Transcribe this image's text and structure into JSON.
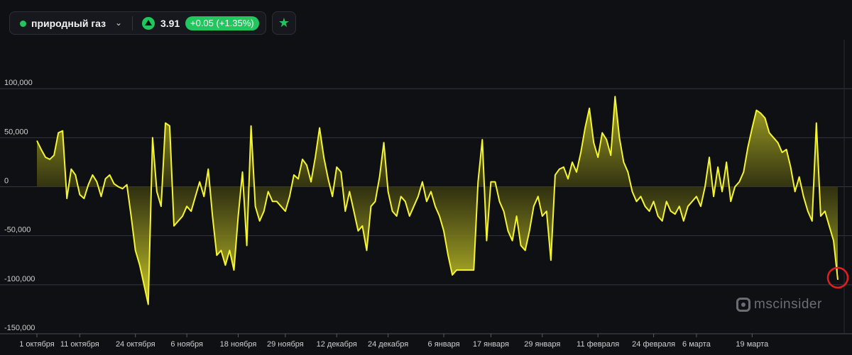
{
  "header": {
    "asset_name": "природный газ",
    "price": "3.91",
    "change": "+0.05 (+1.35%)",
    "icons": [
      "status-dot-icon",
      "chevron-down-icon",
      "triangle-up-icon",
      "star-icon"
    ]
  },
  "watermark": {
    "text": "mscinsider"
  },
  "colors": {
    "background": "#0f1014",
    "line": "#f4f435",
    "accent_green": "#22c55e",
    "highlight_circle": "#e02020",
    "grid": "#34363d"
  },
  "chart_data": {
    "type": "area",
    "title": "",
    "xlabel": "",
    "ylabel": "",
    "ylim": [
      -150000,
      150000
    ],
    "grid": true,
    "y_ticks": [
      {
        "value": 100000,
        "label": "100,000"
      },
      {
        "value": 50000,
        "label": "50,000"
      },
      {
        "value": 0,
        "label": "0"
      },
      {
        "value": -50000,
        "label": "-50,000"
      },
      {
        "value": -100000,
        "label": "-100,000"
      },
      {
        "value": -150000,
        "label": "-150,000"
      }
    ],
    "x_ticks": [
      {
        "index": 0,
        "label": "1 октября"
      },
      {
        "index": 10,
        "label": "11 октября"
      },
      {
        "index": 23,
        "label": "24 октября"
      },
      {
        "index": 35,
        "label": "6 ноября"
      },
      {
        "index": 47,
        "label": "18 ноября"
      },
      {
        "index": 58,
        "label": "29 ноября"
      },
      {
        "index": 70,
        "label": "12 декабря"
      },
      {
        "index": 82,
        "label": "24 декабря"
      },
      {
        "index": 95,
        "label": "6 января"
      },
      {
        "index": 106,
        "label": "17 января"
      },
      {
        "index": 118,
        "label": "29 января"
      },
      {
        "index": 131,
        "label": "11 февраля"
      },
      {
        "index": 144,
        "label": "24 февраля"
      },
      {
        "index": 154,
        "label": "6 марта"
      },
      {
        "index": 167,
        "label": "19 марта"
      }
    ],
    "series": [
      {
        "values": [
          47000,
          38000,
          30000,
          28000,
          32000,
          55000,
          57000,
          -12000,
          18000,
          12000,
          -8000,
          -12000,
          2000,
          12000,
          5000,
          -10000,
          8000,
          12000,
          3000,
          0,
          -2000,
          2000,
          -30000,
          -65000,
          -80000,
          -100000,
          -120000,
          50000,
          -5000,
          -20000,
          65000,
          62000,
          -40000,
          -35000,
          -30000,
          -20000,
          -25000,
          -10000,
          5000,
          -10000,
          18000,
          -30000,
          -70000,
          -65000,
          -80000,
          -65000,
          -85000,
          -30000,
          15000,
          -60000,
          62000,
          -20000,
          -35000,
          -25000,
          -5000,
          -15000,
          -15000,
          -20000,
          -25000,
          -10000,
          12000,
          8000,
          28000,
          22000,
          5000,
          30000,
          60000,
          30000,
          8000,
          -10000,
          20000,
          15000,
          -25000,
          -5000,
          -25000,
          -45000,
          -40000,
          -65000,
          -20000,
          -15000,
          10000,
          45000,
          -5000,
          -25000,
          -30000,
          -10000,
          -15000,
          -30000,
          -20000,
          -10000,
          5000,
          -15000,
          -5000,
          -20000,
          -30000,
          -45000,
          -70000,
          -90000,
          -85000,
          -85000,
          -85000,
          -85000,
          -85000,
          5000,
          48000,
          -55000,
          5000,
          5000,
          -15000,
          -25000,
          -45000,
          -55000,
          -30000,
          -60000,
          -65000,
          -45000,
          -20000,
          -10000,
          -30000,
          -25000,
          -75000,
          12000,
          18000,
          20000,
          8000,
          25000,
          15000,
          35000,
          60000,
          80000,
          45000,
          30000,
          55000,
          48000,
          32000,
          92000,
          50000,
          25000,
          15000,
          -5000,
          -15000,
          -10000,
          -20000,
          -25000,
          -15000,
          -30000,
          -35000,
          -15000,
          -25000,
          -28000,
          -20000,
          -35000,
          -20000,
          -15000,
          -10000,
          -20000,
          0,
          30000,
          -10000,
          20000,
          -5000,
          25000,
          -15000,
          0,
          5000,
          15000,
          40000,
          60000,
          78000,
          75000,
          70000,
          55000,
          50000,
          45000,
          35000,
          38000,
          20000,
          -5000,
          10000,
          -10000,
          -25000,
          -35000,
          65000,
          -30000,
          -25000,
          -40000,
          -55000,
          -95000
        ]
      }
    ],
    "highlight": {
      "index": 187,
      "value": -95000
    }
  }
}
